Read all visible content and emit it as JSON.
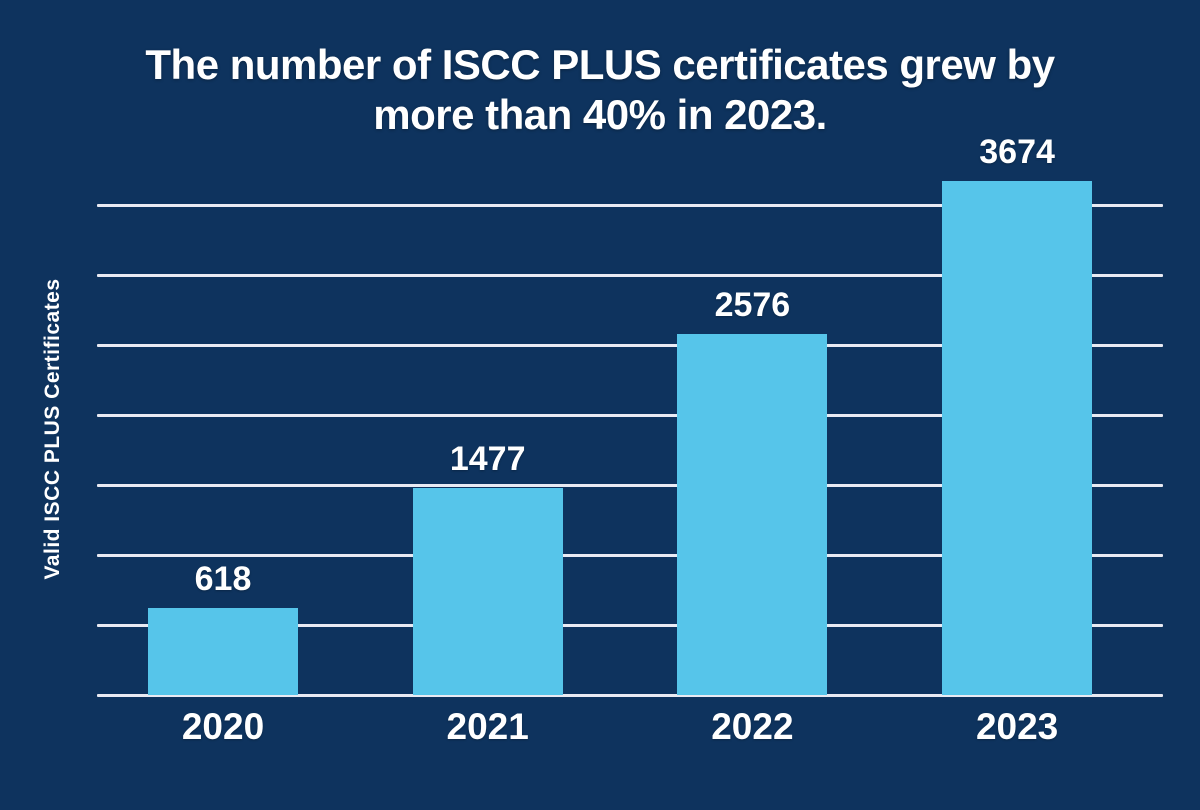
{
  "title": {
    "line1": "The number of ISCC PLUS certificates grew by",
    "line2": "more than 40% in 2023."
  },
  "chart_data": {
    "type": "bar",
    "title": "The number of ISCC PLUS certificates grew by more than 40% in 2023.",
    "categories": [
      "2020",
      "2021",
      "2022",
      "2023"
    ],
    "values": [
      618,
      1477,
      2576,
      3674
    ],
    "data_labels": [
      "618",
      "1477",
      "2576",
      "3674"
    ],
    "xlabel": "",
    "ylabel": "Valid ISCC PLUS Certificates",
    "ylim": [
      0,
      3500
    ],
    "grid_step": 500,
    "grid": "horizontal-only",
    "y_tick_labels_shown": false,
    "legend": "none",
    "colors": {
      "background": "#0E335E",
      "bar": "#56C5EA",
      "gridline": "#E9EAF3",
      "text": "#FFFFFF"
    }
  }
}
